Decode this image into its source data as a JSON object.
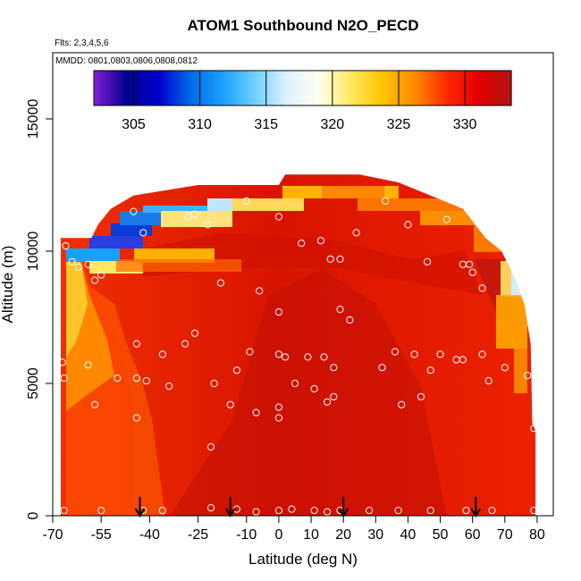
{
  "chart_data": {
    "type": "heatmap",
    "title": "ATOM1 Southbound N2O_PECD",
    "subtitle_flights": "Flts: 2,3,4,5,6",
    "subtitle_dates": "MMDD: 0801,0803,0806,0808,0812",
    "xlabel": "Latitude (deg N)",
    "ylabel": "Altitude (m)",
    "xlim": [
      -70,
      85
    ],
    "ylim": [
      0,
      17500
    ],
    "xticks": [
      -70,
      -55,
      -40,
      -25,
      -10,
      0,
      10,
      20,
      30,
      40,
      50,
      60,
      70,
      80
    ],
    "yticks": [
      0,
      5000,
      10000,
      15000
    ],
    "colorbar": {
      "range": [
        302,
        333.5
      ],
      "ticks": [
        305,
        310,
        315,
        320,
        325,
        330
      ],
      "colors": [
        "#7f1fd6",
        "#00008a",
        "#0000cc",
        "#006be8",
        "#1aa0ff",
        "#6fcfff",
        "#dcf1ff",
        "#fffff0",
        "#ffe860",
        "#ffc400",
        "#ff8c00",
        "#ff2a00",
        "#e40000",
        "#b41414"
      ]
    },
    "ceiling_profile": [
      {
        "lat": -67.5,
        "alt": 10500
      },
      {
        "lat": -61,
        "alt": 10500
      },
      {
        "lat": -58,
        "alt": 10500
      },
      {
        "lat": -56,
        "alt": 11000
      },
      {
        "lat": -52,
        "alt": 11600
      },
      {
        "lat": -45,
        "alt": 12100
      },
      {
        "lat": -25,
        "alt": 12500
      },
      {
        "lat": 0,
        "alt": 12500
      },
      {
        "lat": 2,
        "alt": 12900
      },
      {
        "lat": 25,
        "alt": 12900
      },
      {
        "lat": 37,
        "alt": 12600
      },
      {
        "lat": 47,
        "alt": 12100
      },
      {
        "lat": 57,
        "alt": 11600
      },
      {
        "lat": 64,
        "alt": 10500
      },
      {
        "lat": 69,
        "alt": 10000
      },
      {
        "lat": 73,
        "alt": 9000
      },
      {
        "lat": 76,
        "alt": 8000
      },
      {
        "lat": 78,
        "alt": 6500
      },
      {
        "lat": 78.5,
        "alt": 3500
      },
      {
        "lat": 79.5,
        "alt": 3200
      },
      {
        "lat": 79.5,
        "alt": 0
      }
    ],
    "samples": [
      {
        "lat": -66.5,
        "alt": 200
      },
      {
        "lat": -55,
        "alt": 200
      },
      {
        "lat": -42,
        "alt": 200
      },
      {
        "lat": -36,
        "alt": 200
      },
      {
        "lat": -21,
        "alt": 300
      },
      {
        "lat": -13,
        "alt": 250
      },
      {
        "lat": -7,
        "alt": 150
      },
      {
        "lat": 0,
        "alt": 200
      },
      {
        "lat": 4,
        "alt": 250
      },
      {
        "lat": 11,
        "alt": 200
      },
      {
        "lat": 15,
        "alt": 150
      },
      {
        "lat": 19,
        "alt": 200
      },
      {
        "lat": 28,
        "alt": 200
      },
      {
        "lat": 37,
        "alt": 200
      },
      {
        "lat": 47,
        "alt": 200
      },
      {
        "lat": 58,
        "alt": 200
      },
      {
        "lat": 66,
        "alt": 200
      },
      {
        "lat": 79,
        "alt": 200
      },
      {
        "lat": -67,
        "alt": 5800
      },
      {
        "lat": -66.5,
        "alt": 5200
      },
      {
        "lat": -59,
        "alt": 5700
      },
      {
        "lat": -57,
        "alt": 4200
      },
      {
        "lat": -50,
        "alt": 5200
      },
      {
        "lat": -44,
        "alt": 6500
      },
      {
        "lat": -44,
        "alt": 5200
      },
      {
        "lat": -44,
        "alt": 3700
      },
      {
        "lat": -41,
        "alt": 5100
      },
      {
        "lat": -36,
        "alt": 6100
      },
      {
        "lat": -34,
        "alt": 4900
      },
      {
        "lat": -29,
        "alt": 6500
      },
      {
        "lat": -26,
        "alt": 6900
      },
      {
        "lat": -20,
        "alt": 5000
      },
      {
        "lat": -21,
        "alt": 2600
      },
      {
        "lat": -15,
        "alt": 4200
      },
      {
        "lat": -13,
        "alt": 5500
      },
      {
        "lat": -9,
        "alt": 6200
      },
      {
        "lat": -7,
        "alt": 3900
      },
      {
        "lat": 0,
        "alt": 6100
      },
      {
        "lat": 2,
        "alt": 6000
      },
      {
        "lat": 0,
        "alt": 4100
      },
      {
        "lat": 0,
        "alt": 3700
      },
      {
        "lat": 5,
        "alt": 5000
      },
      {
        "lat": 9,
        "alt": 6000
      },
      {
        "lat": 11,
        "alt": 4800
      },
      {
        "lat": 14,
        "alt": 6000
      },
      {
        "lat": 15,
        "alt": 4300
      },
      {
        "lat": 17,
        "alt": 4500
      },
      {
        "lat": 17,
        "alt": 5600
      },
      {
        "lat": 32,
        "alt": 5600
      },
      {
        "lat": 36,
        "alt": 6200
      },
      {
        "lat": 38,
        "alt": 4200
      },
      {
        "lat": 42,
        "alt": 6100
      },
      {
        "lat": 44,
        "alt": 4500
      },
      {
        "lat": 47,
        "alt": 5500
      },
      {
        "lat": 50,
        "alt": 6100
      },
      {
        "lat": 55,
        "alt": 5900
      },
      {
        "lat": 57,
        "alt": 5900
      },
      {
        "lat": 63,
        "alt": 6100
      },
      {
        "lat": 65,
        "alt": 5100
      },
      {
        "lat": 70,
        "alt": 5600
      },
      {
        "lat": 77,
        "alt": 5300
      },
      {
        "lat": 79,
        "alt": 3300
      },
      {
        "lat": -66,
        "alt": 10200
      },
      {
        "lat": -64,
        "alt": 9600
      },
      {
        "lat": -62,
        "alt": 9400
      },
      {
        "lat": -59,
        "alt": 9500
      },
      {
        "lat": -57,
        "alt": 8900
      },
      {
        "lat": -55,
        "alt": 9100
      },
      {
        "lat": -45,
        "alt": 11500
      },
      {
        "lat": -42,
        "alt": 10700
      },
      {
        "lat": -28,
        "alt": 11300
      },
      {
        "lat": -26,
        "alt": 11400
      },
      {
        "lat": -22,
        "alt": 11000
      },
      {
        "lat": -18,
        "alt": 8800
      },
      {
        "lat": -10,
        "alt": 11900
      },
      {
        "lat": -6,
        "alt": 8500
      },
      {
        "lat": 0,
        "alt": 11300
      },
      {
        "lat": 0,
        "alt": 7700
      },
      {
        "lat": 7,
        "alt": 10300
      },
      {
        "lat": 13,
        "alt": 10400
      },
      {
        "lat": 16,
        "alt": 9700
      },
      {
        "lat": 19,
        "alt": 9700
      },
      {
        "lat": 19,
        "alt": 7800
      },
      {
        "lat": 22,
        "alt": 7400
      },
      {
        "lat": 24,
        "alt": 10700
      },
      {
        "lat": 26,
        "alt": 13100
      },
      {
        "lat": 33,
        "alt": 11900
      },
      {
        "lat": 40,
        "alt": 11000
      },
      {
        "lat": 46,
        "alt": 9600
      },
      {
        "lat": 52,
        "alt": 11200
      },
      {
        "lat": 57,
        "alt": 9500
      },
      {
        "lat": 59,
        "alt": 9500
      },
      {
        "lat": 60,
        "alt": 9200
      },
      {
        "lat": 63,
        "alt": 8600
      },
      {
        "lat": 68,
        "alt": 11400
      }
    ],
    "flight_markers": [
      -43,
      -15,
      20,
      61
    ]
  }
}
